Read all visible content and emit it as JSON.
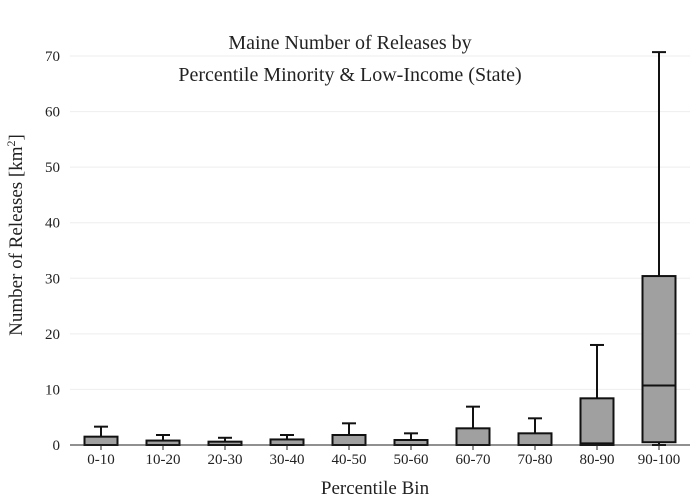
{
  "chart_data": {
    "type": "box",
    "title_lines": [
      "Maine Number of Releases by",
      "Percentile Minority & Low-Income (State)"
    ],
    "xlabel": "Percentile Bin",
    "ylabel_main": "Number of Releases  [km",
    "ylabel_sup": "2",
    "ylabel_close": "]",
    "ylim": [
      0,
      70
    ],
    "yticks": [
      0,
      10,
      20,
      30,
      40,
      50,
      60,
      70
    ],
    "grid": true,
    "colors": {
      "box_fill": "#a0a0a0",
      "box_stroke": "#111111",
      "grid": "#eeeeee"
    },
    "categories": [
      "0-10",
      "10-20",
      "20-30",
      "30-40",
      "40-50",
      "50-60",
      "60-70",
      "70-80",
      "80-90",
      "90-100"
    ],
    "boxes": [
      {
        "min": 0,
        "q1": 0,
        "median": 0,
        "q3": 1.5,
        "max": 3.3
      },
      {
        "min": 0,
        "q1": 0,
        "median": 0,
        "q3": 0.8,
        "max": 1.8
      },
      {
        "min": 0,
        "q1": 0,
        "median": 0,
        "q3": 0.6,
        "max": 1.3
      },
      {
        "min": 0,
        "q1": 0,
        "median": 0,
        "q3": 1.0,
        "max": 1.8
      },
      {
        "min": 0,
        "q1": 0,
        "median": 0,
        "q3": 1.8,
        "max": 3.9
      },
      {
        "min": 0,
        "q1": 0,
        "median": 0,
        "q3": 0.9,
        "max": 2.1
      },
      {
        "min": 0,
        "q1": 0,
        "median": 0,
        "q3": 3.0,
        "max": 6.9
      },
      {
        "min": 0,
        "q1": 0,
        "median": 0,
        "q3": 2.1,
        "max": 4.8
      },
      {
        "min": 0,
        "q1": 0,
        "median": 0.3,
        "q3": 8.4,
        "max": 18
      },
      {
        "min": 0,
        "q1": 0.5,
        "median": 10.7,
        "q3": 30.4,
        "max": 70.7
      }
    ]
  }
}
